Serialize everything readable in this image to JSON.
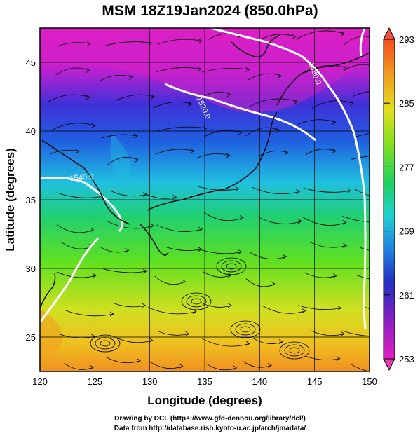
{
  "title": "MSM 18Z19Jan2024 (850.0hPa)",
  "axes": {
    "x_label": "Longitude (degrees)",
    "y_label": "Latitude  (degrees)",
    "x_ticks": [
      "120",
      "125",
      "130",
      "135",
      "140",
      "145",
      "150"
    ],
    "y_ticks": [
      "25",
      "30",
      "35",
      "40",
      "45"
    ],
    "x_range": [
      120,
      150
    ],
    "y_range": [
      22.5,
      47.5
    ]
  },
  "colorbar": {
    "labels": [
      "293",
      "285",
      "277",
      "269",
      "261",
      "253"
    ],
    "range": [
      253,
      293
    ],
    "colors": [
      "#f05070",
      "#f08020",
      "#f0d020",
      "#a0e020",
      "#20d040",
      "#20d0c0",
      "#2060e0",
      "#2020c0",
      "#8020c0",
      "#e020c0"
    ]
  },
  "contours": [
    {
      "label": "1520.0"
    },
    {
      "label": "1480.0"
    },
    {
      "label": "1540.0"
    }
  ],
  "footer": {
    "line1": "Drawing by DCL (https://www.gfd-dennou.org/library/dcl/)",
    "line2": "Data from http://database.rish.kyoto-u.ac.jp/arch/jmadata/"
  }
}
